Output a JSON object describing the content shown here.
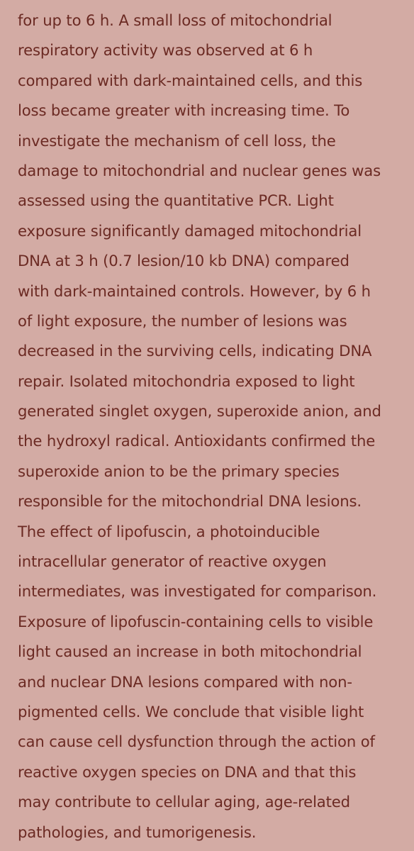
{
  "abstract": {
    "lines": [
      "for up to 6 h. A small loss of mitochondrial",
      "respiratory activity was observed at 6 h",
      "compared with dark-maintained cells, and this",
      "loss became greater with increasing time. To",
      "investigate the mechanism of cell loss, the",
      "damage to mitochondrial and nuclear genes was",
      "assessed using the quantitative PCR. Light",
      "exposure significantly damaged mitochondrial",
      "DNA at 3 h (0.7 lesion/10 kb DNA) compared",
      "with dark-maintained controls. However, by 6 h",
      "of light exposure, the number of lesions was",
      "decreased in the surviving cells, indicating DNA",
      "repair. Isolated mitochondria exposed to light",
      "generated singlet oxygen, superoxide anion, and",
      "the hydroxyl radical. Antioxidants confirmed the",
      "superoxide anion to be the primary species",
      "responsible for the mitochondrial DNA lesions.",
      "The effect of lipofuscin, a photoinducible",
      "intracellular generator of reactive oxygen",
      "intermediates, was investigated for comparison.",
      "Exposure of lipofuscin-containing cells to visible",
      "light caused an increase in both mitochondrial",
      "and nuclear DNA lesions compared with non-",
      "pigmented cells. We conclude that visible light",
      "can cause cell dysfunction through the action of",
      "reactive oxygen species on DNA and that this",
      "may contribute to cellular aging, age-related",
      "pathologies, and tumorigenesis."
    ]
  },
  "colors": {
    "background": "#d3aba4",
    "text": "#6b2a23"
  }
}
